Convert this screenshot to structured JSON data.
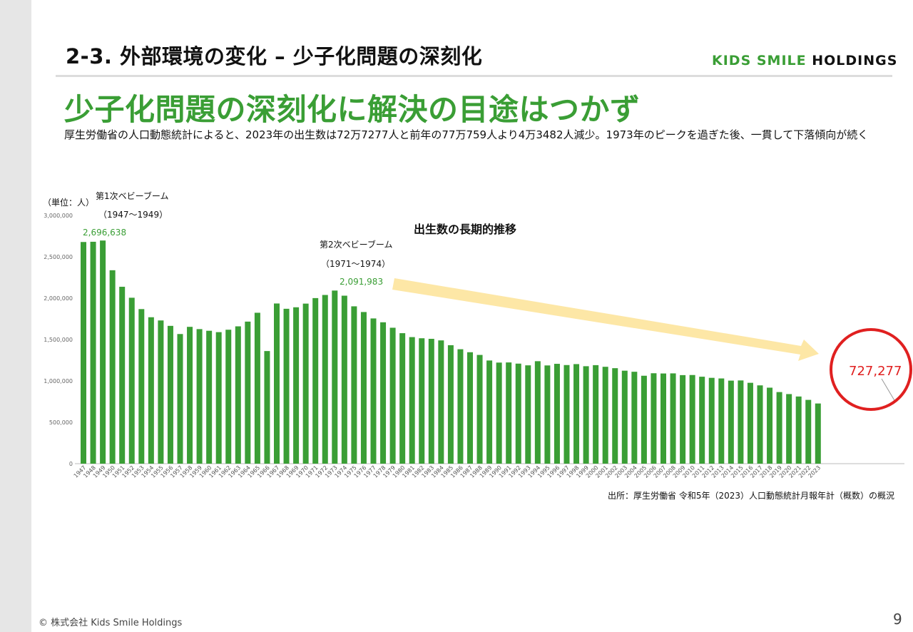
{
  "header": {
    "section_title": "2-3. 外部環境の変化 – 少子化問題の深刻化",
    "brand_part1": "KIDS SMILE",
    "brand_part2": "HOLDINGS"
  },
  "headline": "少子化問題の深刻化に解決の目途はつかず",
  "summary": "厚生労働省の人口動態統計によると、2023年の出生数は72万7277人と前年の77万759人より4万3482人減少。1973年のピークを過ぎた後、一貫して下落傾向が続く",
  "footer": {
    "copyright": "© 株式会社 Kids Smile Holdings",
    "page_number": "9"
  },
  "colors": {
    "bar": "#3a9e35",
    "highlight": "#e02020",
    "arrow": "#fde7a6"
  },
  "chart_data": {
    "type": "bar",
    "title": "出生数の長期的推移",
    "ylabel": "（単位：人）",
    "ylim": [
      0,
      3000000
    ],
    "y_ticks": [
      0,
      500000,
      1000000,
      1500000,
      2000000,
      2500000,
      3000000
    ],
    "y_tick_labels": [
      "0",
      "500,000",
      "1,000,000",
      "1,500,000",
      "2,000,000",
      "2,500,000",
      "3,000,000"
    ],
    "source": "出所：厚生労働省 令和5年（2023）人口動態統計月報年計（概数）の概況",
    "categories": [
      "1947",
      "1948",
      "1949",
      "1950",
      "1951",
      "1952",
      "1953",
      "1954",
      "1955",
      "1956",
      "1957",
      "1958",
      "1959",
      "1960",
      "1961",
      "1962",
      "1963",
      "1964",
      "1965",
      "1966",
      "1967",
      "1968",
      "1969",
      "1970",
      "1971",
      "1972",
      "1973",
      "1974",
      "1975",
      "1976",
      "1977",
      "1978",
      "1979",
      "1980",
      "1981",
      "1982",
      "1983",
      "1984",
      "1985",
      "1986",
      "1987",
      "1988",
      "1989",
      "1990",
      "1991",
      "1992",
      "1993",
      "1994",
      "1995",
      "1996",
      "1997",
      "1998",
      "1999",
      "2000",
      "2001",
      "2002",
      "2003",
      "2004",
      "2005",
      "2006",
      "2007",
      "2008",
      "2009",
      "2010",
      "2011",
      "2012",
      "2013",
      "2014",
      "2015",
      "2016",
      "2017",
      "2018",
      "2019",
      "2020",
      "2021",
      "2022",
      "2023"
    ],
    "values": [
      2678792,
      2681624,
      2696638,
      2337507,
      2137689,
      2005162,
      1868040,
      1769580,
      1730692,
      1665278,
      1566713,
      1653469,
      1626088,
      1606041,
      1589372,
      1618616,
      1659521,
      1716761,
      1823697,
      1360974,
      1935647,
      1871839,
      1889815,
      1934239,
      2000973,
      2038682,
      2091983,
      2029989,
      1901440,
      1832617,
      1755100,
      1708643,
      1642580,
      1576889,
      1529455,
      1515392,
      1508687,
      1489780,
      1431577,
      1382946,
      1346658,
      1314006,
      1246802,
      1221585,
      1223245,
      1208989,
      1188282,
      1238328,
      1187064,
      1206555,
      1191665,
      1203147,
      1177669,
      1190547,
      1170662,
      1153855,
      1123610,
      1110721,
      1062530,
      1092674,
      1089818,
      1091156,
      1070036,
      1071305,
      1050806,
      1037232,
      1029817,
      1003609,
      1005721,
      977242,
      946146,
      918400,
      865239,
      840835,
      811622,
      770759,
      727277
    ],
    "annotations": {
      "boom1_label": "第1次ベビーブーム",
      "boom1_years": "（1947～1949）",
      "boom1_value": "2,696,638",
      "boom2_label": "第2次ベビーブーム",
      "boom2_years": "（1971～1974）",
      "boom2_value": "2,091,983",
      "latest_value": "727,277"
    }
  }
}
